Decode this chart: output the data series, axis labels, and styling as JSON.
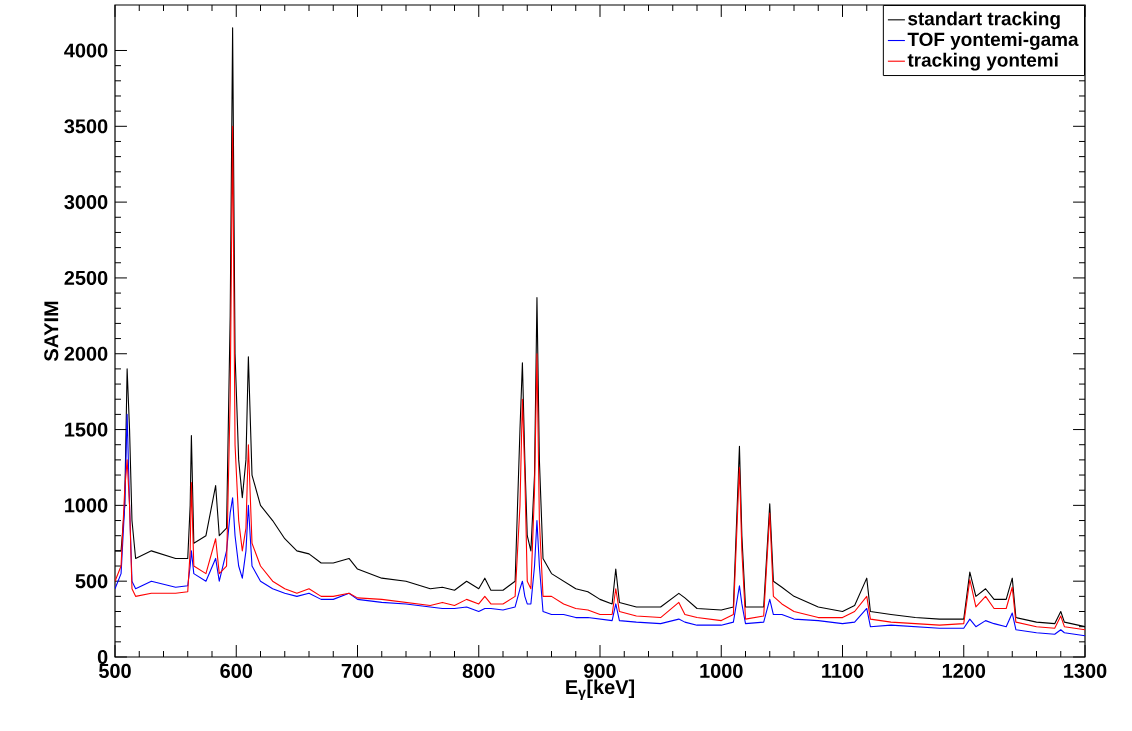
{
  "chart_data": {
    "type": "line",
    "xlabel": "E$_{γ}$[keV]",
    "ylabel": "SAYIM",
    "xlim": [
      500,
      1300
    ],
    "ylim": [
      0,
      4300
    ],
    "xticks": [
      500,
      600,
      700,
      800,
      900,
      1000,
      1100,
      1200,
      1300
    ],
    "yticks": [
      0,
      500,
      1000,
      1500,
      2000,
      2500,
      3000,
      3500,
      4000
    ],
    "legend": "top right",
    "marker": "none",
    "x": [
      500,
      505,
      508,
      510,
      512,
      514,
      517,
      530,
      550,
      560,
      562,
      563,
      565,
      575,
      583,
      586,
      592,
      595,
      597,
      599,
      602,
      605,
      608,
      610,
      613,
      620,
      630,
      640,
      650,
      660,
      670,
      680,
      693,
      700,
      720,
      740,
      760,
      770,
      780,
      790,
      800,
      805,
      810,
      820,
      830,
      834,
      836,
      838,
      840,
      843,
      846,
      848,
      850,
      853,
      860,
      870,
      880,
      890,
      900,
      910,
      913,
      916,
      930,
      950,
      965,
      970,
      980,
      1000,
      1010,
      1015,
      1017,
      1020,
      1035,
      1040,
      1043,
      1050,
      1060,
      1080,
      1100,
      1110,
      1120,
      1123,
      1140,
      1160,
      1180,
      1200,
      1205,
      1210,
      1218,
      1225,
      1235,
      1240,
      1243,
      1260,
      1275,
      1280,
      1283,
      1300
    ],
    "series": [
      {
        "name": "standart tracking",
        "color": "#000000",
        "values": [
          700,
          700,
          1000,
          1900,
          1500,
          900,
          650,
          700,
          650,
          650,
          1000,
          1460,
          750,
          800,
          1130,
          800,
          850,
          2250,
          4150,
          2000,
          1300,
          1050,
          1300,
          1980,
          1200,
          1000,
          900,
          780,
          700,
          680,
          620,
          620,
          650,
          580,
          520,
          500,
          450,
          460,
          440,
          500,
          450,
          520,
          440,
          440,
          500,
          1500,
          1940,
          1300,
          800,
          700,
          1200,
          2370,
          1300,
          650,
          550,
          500,
          450,
          430,
          380,
          350,
          580,
          360,
          330,
          330,
          420,
          390,
          320,
          310,
          330,
          1390,
          800,
          330,
          330,
          1010,
          500,
          460,
          400,
          330,
          300,
          340,
          520,
          300,
          280,
          260,
          250,
          250,
          560,
          400,
          450,
          380,
          380,
          520,
          260,
          230,
          220,
          300,
          230,
          200
        ]
      },
      {
        "name": "TOF yontemi-gama",
        "color": "#0000ff",
        "values": [
          450,
          550,
          1000,
          1600,
          1000,
          500,
          450,
          500,
          460,
          470,
          600,
          700,
          550,
          500,
          650,
          500,
          700,
          950,
          1050,
          800,
          600,
          520,
          700,
          1000,
          600,
          500,
          450,
          420,
          400,
          420,
          380,
          380,
          420,
          380,
          360,
          350,
          330,
          320,
          320,
          330,
          300,
          320,
          320,
          310,
          330,
          450,
          500,
          400,
          350,
          350,
          600,
          900,
          600,
          300,
          280,
          280,
          260,
          260,
          250,
          240,
          350,
          240,
          230,
          220,
          250,
          230,
          210,
          210,
          230,
          470,
          350,
          220,
          230,
          380,
          280,
          280,
          250,
          240,
          220,
          230,
          320,
          200,
          210,
          200,
          190,
          190,
          250,
          200,
          240,
          220,
          200,
          290,
          180,
          160,
          150,
          180,
          160,
          140
        ]
      },
      {
        "name": "tracking yontemi",
        "color": "#ff0000",
        "values": [
          500,
          600,
          1100,
          1300,
          1000,
          450,
          400,
          420,
          420,
          430,
          700,
          1150,
          600,
          550,
          780,
          550,
          600,
          1700,
          3500,
          1400,
          900,
          700,
          850,
          1400,
          750,
          600,
          500,
          450,
          420,
          450,
          400,
          400,
          420,
          390,
          380,
          360,
          340,
          360,
          340,
          380,
          350,
          400,
          350,
          350,
          400,
          1000,
          1700,
          1200,
          500,
          450,
          1100,
          2000,
          900,
          400,
          400,
          350,
          320,
          310,
          280,
          280,
          450,
          300,
          270,
          260,
          360,
          280,
          260,
          240,
          280,
          1250,
          700,
          250,
          270,
          950,
          400,
          350,
          300,
          260,
          260,
          300,
          400,
          250,
          230,
          220,
          210,
          220,
          510,
          330,
          400,
          320,
          320,
          460,
          230,
          200,
          190,
          270,
          200,
          180
        ]
      }
    ]
  }
}
